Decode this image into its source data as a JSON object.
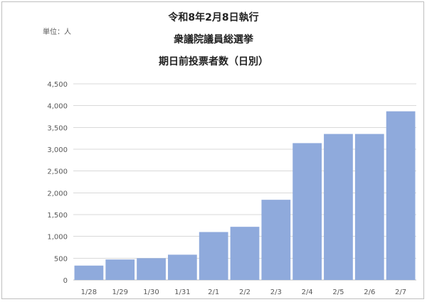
{
  "chart_data": {
    "type": "bar",
    "title": [
      "令和8年2月8日執行",
      "衆議院議員総選挙",
      "期日前投票者数（日別）"
    ],
    "unit_label": "単位：人",
    "categories": [
      "1/28",
      "1/29",
      "1/30",
      "1/31",
      "2/1",
      "2/2",
      "2/3",
      "2/4",
      "2/5",
      "2/6",
      "2/7"
    ],
    "values": [
      330,
      470,
      500,
      580,
      1100,
      1220,
      1840,
      3140,
      3350,
      3350,
      3870
    ],
    "ylim": [
      0,
      4500
    ],
    "yticks": [
      0,
      500,
      1000,
      1500,
      2000,
      2500,
      3000,
      3500,
      4000,
      4500
    ],
    "ytick_labels": [
      "0",
      "500",
      "1,000",
      "1,500",
      "2,000",
      "2,500",
      "3,000",
      "3,500",
      "4,000",
      "4,500"
    ],
    "grid": true,
    "bar_color": "#8faadc",
    "grid_color": "#d9d9d9"
  }
}
